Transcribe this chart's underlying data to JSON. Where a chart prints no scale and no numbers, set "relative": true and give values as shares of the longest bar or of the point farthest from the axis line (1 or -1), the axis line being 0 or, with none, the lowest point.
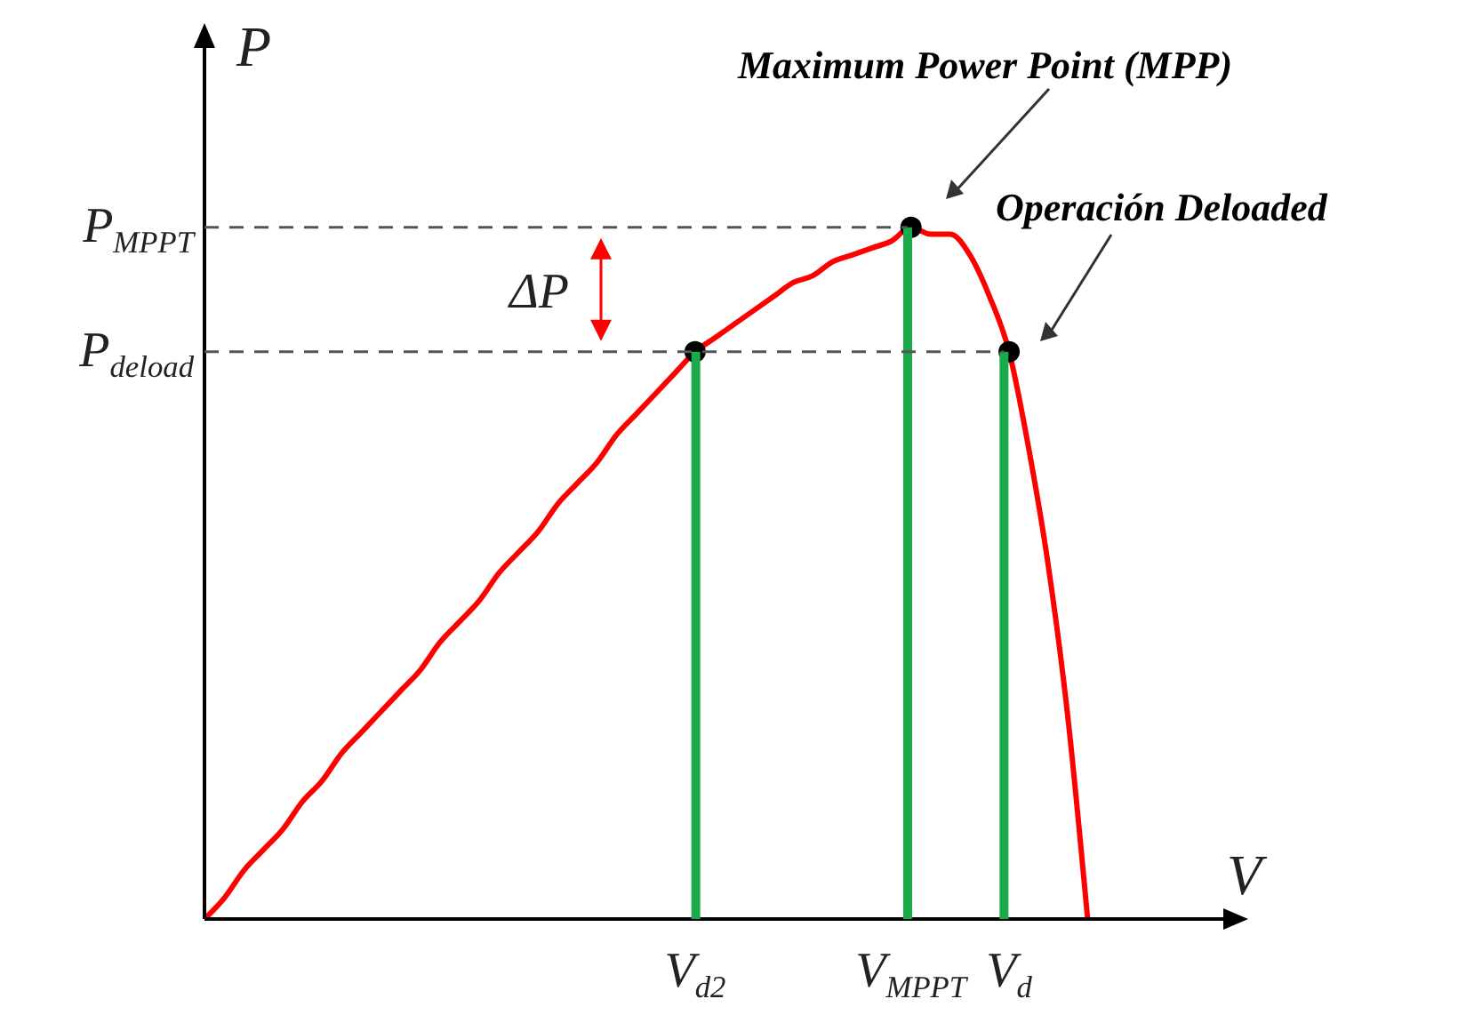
{
  "chart_data": {
    "type": "line",
    "relative": true,
    "xlabel": "V",
    "ylabel": "P",
    "categories": [
      null,
      null,
      null,
      null,
      null,
      null,
      null,
      null,
      null,
      null,
      null,
      null,
      null,
      null,
      null,
      null,
      null,
      null,
      null,
      null,
      null,
      null,
      null,
      null,
      null,
      "V$_{d2}$",
      null,
      null,
      null,
      null,
      null,
      null,
      null,
      null,
      null,
      null,
      "V$_{MPPT}$",
      null,
      null,
      null,
      null,
      "V$_{d}$",
      null,
      null,
      null,
      null,
      null,
      null,
      null,
      null,
      null,
      null,
      null,
      null
    ],
    "series": [
      {
        "color": "#ff0000",
        "values": [
          0,
          0.03,
          0.07,
          0.1,
          0.13,
          0.17,
          0.2,
          0.24,
          0.27,
          0.3,
          0.33,
          0.36,
          0.4,
          0.43,
          0.46,
          0.5,
          0.53,
          0.56,
          0.6,
          0.63,
          0.66,
          0.7,
          0.73,
          0.76,
          0.79,
          0.82,
          0.84,
          0.86,
          0.88,
          0.9,
          0.92,
          0.93,
          0.95,
          0.96,
          0.97,
          0.98,
          1,
          0.99,
          0.99,
          0.96,
          0.9,
          0.82,
          0.68,
          0.51,
          0.29,
          0,
          null,
          null,
          null,
          null,
          null,
          null,
          null,
          null
        ]
      },
      {
        "type": "scatter",
        "color": "#000000",
        "marker": "circle",
        "values": [
          null,
          null,
          null,
          null,
          null,
          null,
          null,
          null,
          null,
          null,
          null,
          null,
          null,
          null,
          null,
          null,
          null,
          null,
          null,
          null,
          null,
          null,
          null,
          null,
          null,
          0.82,
          null,
          null,
          null,
          null,
          null,
          null,
          null,
          null,
          null,
          null,
          1,
          null,
          null,
          null,
          null,
          0.82,
          null,
          null,
          null,
          null,
          null,
          null,
          null,
          null,
          null,
          null,
          null,
          null
        ]
      },
      {
        "type": "bar",
        "color": "#1aaa4a",
        "values": [
          null,
          null,
          null,
          null,
          null,
          null,
          null,
          null,
          null,
          null,
          null,
          null,
          null,
          null,
          null,
          null,
          null,
          null,
          null,
          null,
          null,
          null,
          null,
          null,
          null,
          0.82,
          null,
          null,
          null,
          null,
          null,
          null,
          null,
          null,
          null,
          null,
          1,
          null,
          null,
          null,
          null,
          0.82,
          null,
          null,
          null,
          null,
          null,
          null,
          null,
          null,
          null,
          null,
          null,
          null
        ]
      }
    ],
    "ref_lines": [
      {
        "axis": "y",
        "value": 1,
        "label": "P$_{MPPT}$",
        "color": "#555555",
        "line_style": "dashed"
      },
      {
        "axis": "y",
        "value": 0.82,
        "label": "P$_{deload}$",
        "color": "#555555",
        "line_style": "dashed"
      }
    ],
    "annotations": [
      "Maximum Power Point (MPP)",
      "Operación Deloaded",
      "ΔP"
    ]
  }
}
